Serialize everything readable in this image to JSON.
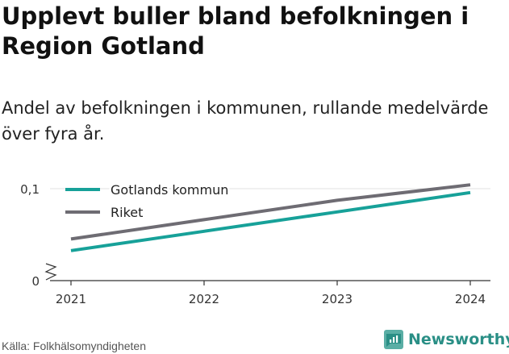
{
  "header": {
    "title": "Upplevt buller bland befolkningen i Region Gotland",
    "subtitle": "Andel av befolkningen i kommunen, rullande medelvärde över fyra år."
  },
  "footer": {
    "source": "Källa: Folkhälsomyndigheten",
    "brand": "Newsworthy"
  },
  "chart_data": {
    "type": "line",
    "x": [
      2021,
      2022,
      2023,
      2024
    ],
    "xticks": [
      "2021",
      "2022",
      "2023",
      "2024"
    ],
    "yticks": [
      {
        "value": 0,
        "label": "0"
      },
      {
        "value": 0.1,
        "label": "0,1"
      }
    ],
    "ylim": [
      0,
      0.1
    ],
    "y_axis_break": true,
    "grid": true,
    "legend_position": "top-left",
    "series": [
      {
        "name": "Gotlands kommun",
        "color": "#17a199",
        "values": [
          0.084,
          0.089,
          0.094,
          0.099
        ]
      },
      {
        "name": "Riket",
        "color": "#6e6c73",
        "values": [
          0.087,
          0.092,
          0.097,
          0.101
        ]
      }
    ]
  }
}
